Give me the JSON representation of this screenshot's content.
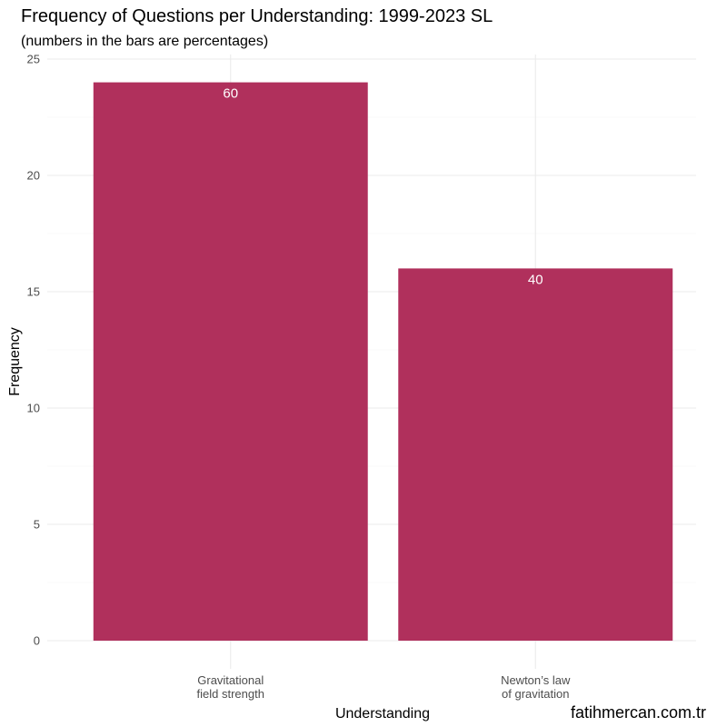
{
  "chart_data": {
    "type": "bar",
    "title": "Frequency of Questions per Understanding: 1999-2023 SL",
    "subtitle": "(numbers in the bars are percentages)",
    "xlabel": "Understanding",
    "ylabel": "Frequency",
    "categories": [
      [
        "Gravitational",
        "field strength"
      ],
      [
        "Newton’s law",
        "of gravitation"
      ]
    ],
    "values": [
      24,
      16
    ],
    "bar_labels": [
      "60",
      "40"
    ],
    "ylim": [
      0,
      25
    ],
    "yticks": [
      0,
      5,
      10,
      15,
      20,
      25
    ],
    "grid": true,
    "legend": "none",
    "caption": "fatihmercan.com.tr",
    "colors": {
      "bar": "#b0305c",
      "grid": "#ebebeb",
      "tick_text": "#4d4d4d"
    }
  }
}
